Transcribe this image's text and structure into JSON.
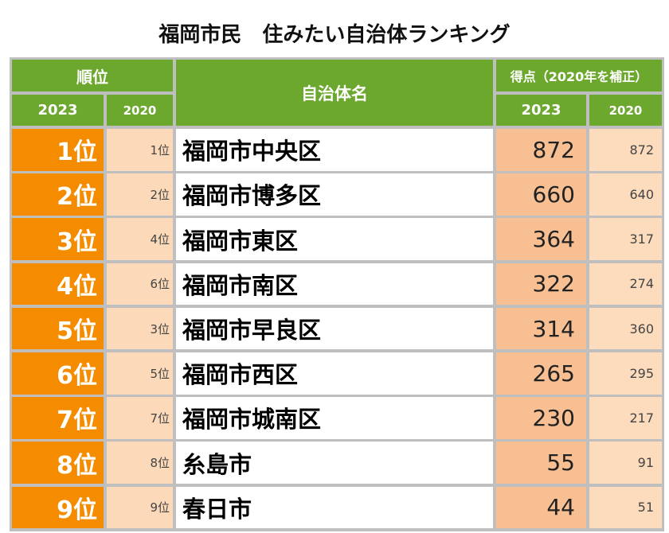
{
  "title": "福岡市民　住みたい自治体ランキング",
  "header": {
    "rank_group": "順位",
    "rank_2023": "2023",
    "rank_2020": "2020",
    "name": "自治体名",
    "score_group": "得点（2020年を補正）",
    "score_2023": "2023",
    "score_2020": "2020"
  },
  "colors": {
    "header_green": "#6da82e",
    "rank_orange": "#f58c00",
    "light_peach": "#fcd9b8",
    "score_peach": "#f8bf92",
    "grid_gray": "#bfbfbf"
  },
  "chart_data": {
    "type": "table",
    "title": "福岡市民　住みたい自治体ランキング",
    "columns": [
      "順位 2023",
      "順位 2020",
      "自治体名",
      "得点 2023",
      "得点 2020"
    ],
    "rows": [
      {
        "rank_2023": "1位",
        "rank_2020": "1位",
        "name": "福岡市中央区",
        "score_2023": "872",
        "score_2020": "872"
      },
      {
        "rank_2023": "2位",
        "rank_2020": "2位",
        "name": "福岡市博多区",
        "score_2023": "660",
        "score_2020": "640"
      },
      {
        "rank_2023": "3位",
        "rank_2020": "4位",
        "name": "福岡市東区",
        "score_2023": "364",
        "score_2020": "317"
      },
      {
        "rank_2023": "4位",
        "rank_2020": "6位",
        "name": "福岡市南区",
        "score_2023": "322",
        "score_2020": "274"
      },
      {
        "rank_2023": "5位",
        "rank_2020": "3位",
        "name": "福岡市早良区",
        "score_2023": "314",
        "score_2020": "360"
      },
      {
        "rank_2023": "6位",
        "rank_2020": "5位",
        "name": "福岡市西区",
        "score_2023": "265",
        "score_2020": "295"
      },
      {
        "rank_2023": "7位",
        "rank_2020": "7位",
        "name": "福岡市城南区",
        "score_2023": "230",
        "score_2020": "217"
      },
      {
        "rank_2023": "8位",
        "rank_2020": "8位",
        "name": "糸島市",
        "score_2023": "55",
        "score_2020": "91"
      },
      {
        "rank_2023": "9位",
        "rank_2020": "9位",
        "name": "春日市",
        "score_2023": "44",
        "score_2020": "51"
      }
    ]
  }
}
